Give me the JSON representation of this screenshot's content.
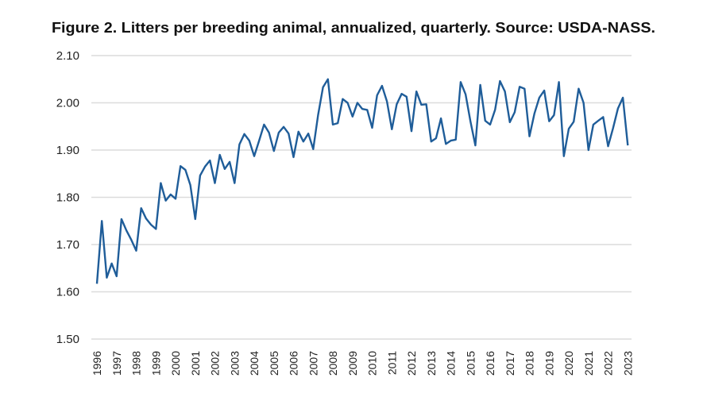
{
  "chart_data": {
    "type": "line",
    "title": "Figure 2. Litters per breeding animal, annualized, quarterly. Source: USDA-NASS.",
    "xlabel": "",
    "ylabel": "",
    "ylim": [
      1.5,
      2.1
    ],
    "yticks": [
      "1.50",
      "1.60",
      "1.70",
      "1.80",
      "1.90",
      "2.00",
      "2.10"
    ],
    "xticks": [
      "1996",
      "1997",
      "1998",
      "1999",
      "2000",
      "2001",
      "2002",
      "2003",
      "2004",
      "2005",
      "2006",
      "2007",
      "2008",
      "2009",
      "2010",
      "2011",
      "2012",
      "2013",
      "2014",
      "2015",
      "2016",
      "2017",
      "2018",
      "2019",
      "2020",
      "2021",
      "2022",
      "2023"
    ],
    "grid": "horizontal",
    "legend": "none",
    "line_color": "#1f5d99",
    "frequency": "quarterly",
    "series": [
      {
        "values": [
          1.617,
          1.75,
          1.63,
          1.66,
          1.633,
          1.754,
          1.73,
          1.71,
          1.687,
          1.777,
          1.755,
          1.742,
          1.733,
          1.83,
          1.793,
          1.806,
          1.797,
          1.866,
          1.858,
          1.826,
          1.754,
          1.846,
          1.865,
          1.878,
          1.83,
          1.89,
          1.86,
          1.875,
          1.83,
          1.912,
          1.934,
          1.92,
          1.887,
          1.92,
          1.954,
          1.937,
          1.898,
          1.937,
          1.949,
          1.935,
          1.885,
          1.939,
          1.918,
          1.935,
          1.902,
          1.974,
          2.033,
          2.05,
          1.954,
          1.957,
          2.008,
          2.0,
          1.971,
          2.0,
          1.987,
          1.985,
          1.947,
          2.016,
          2.036,
          2.003,
          1.944,
          1.997,
          2.019,
          2.013,
          1.94,
          2.024,
          1.996,
          1.997,
          1.918,
          1.925,
          1.967,
          1.913,
          1.92,
          1.922,
          2.044,
          2.018,
          1.96,
          1.91,
          2.038,
          1.962,
          1.954,
          1.985,
          2.046,
          2.024,
          1.959,
          1.98,
          2.034,
          2.03,
          1.929,
          1.977,
          2.011,
          2.026,
          1.961,
          1.974,
          2.044,
          1.887,
          1.945,
          1.96,
          2.03,
          2.0,
          1.9,
          1.954,
          1.962,
          1.97,
          1.908,
          1.946,
          1.988,
          2.011,
          1.91
        ]
      }
    ]
  }
}
